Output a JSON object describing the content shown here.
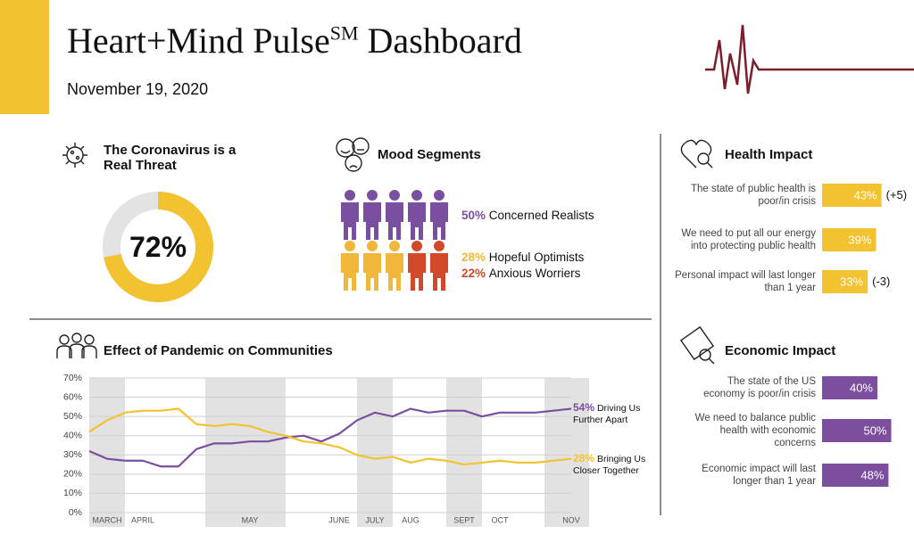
{
  "header": {
    "title": "Heart+Mind Pulse",
    "title_sup": "SM",
    "title_end": " Dashboard",
    "date": "November 19, 2020"
  },
  "threat": {
    "title": "The Coronavirus is a Real Threat",
    "value": 72,
    "value_label": "72%",
    "color": "#f2c230"
  },
  "mood": {
    "title": "Mood Segments",
    "segments": [
      {
        "name": "Concerned Realists",
        "value": 50,
        "value_label": "50%",
        "color": "#7b4fa0"
      },
      {
        "name": "Hopeful Optimists",
        "value": 28,
        "value_label": "28%",
        "color": "#f0b73a"
      },
      {
        "name": "Anxious Worriers",
        "value": 22,
        "value_label": "22%",
        "color": "#d04a2a"
      }
    ]
  },
  "health": {
    "title": "Health Impact",
    "color": "#f2c230",
    "items": [
      {
        "label": "The state of public health is poor/in crisis",
        "value": 43,
        "value_label": "43%",
        "change": "(+5)"
      },
      {
        "label": "We need to put all our energy into protecting public health",
        "value": 39,
        "value_label": "39%"
      },
      {
        "label": "Personal impact will last longer than 1 year",
        "value": 33,
        "value_label": "33%",
        "change": "(-3)"
      }
    ]
  },
  "economic": {
    "title": "Economic Impact",
    "color": "#7b4f9e",
    "items": [
      {
        "label": "The state of the US economy is poor/in crisis",
        "value": 40,
        "value_label": "40%"
      },
      {
        "label": "We need to balance public health with economic concerns",
        "value": 50,
        "value_label": "50%"
      },
      {
        "label": "Economic impact will last longer than 1 year",
        "value": 48,
        "value_label": "48%"
      }
    ]
  },
  "chart_data": {
    "type": "line",
    "title": "Effect of Pandemic on Communities",
    "categories": [
      null,
      "MARCH",
      null,
      "APRIL",
      null,
      null,
      null,
      null,
      null,
      "MAY",
      null,
      null,
      null,
      null,
      "JUNE",
      null,
      "JULY",
      null,
      "AUG",
      null,
      null,
      "SEPT",
      null,
      "OCT",
      null,
      null,
      null,
      "NOV"
    ],
    "ylim": [
      0,
      70
    ],
    "yticks": [
      {
        "value": 0,
        "label": "0%"
      },
      {
        "value": 10,
        "label": "10%"
      },
      {
        "value": 20,
        "label": "20%"
      },
      {
        "value": 30,
        "label": "30%"
      },
      {
        "value": 40,
        "label": "40%"
      },
      {
        "value": 50,
        "label": "50%"
      },
      {
        "value": 60,
        "label": "60%"
      },
      {
        "value": 70,
        "label": "70%"
      }
    ],
    "grid": true,
    "series": [
      {
        "name": "Driving Us Further Apart",
        "color": "#7b4fa0",
        "value_label": "54%",
        "values": [
          32,
          28,
          27,
          27,
          24,
          24,
          33,
          36,
          36,
          37,
          37,
          39,
          40,
          37,
          41,
          48,
          52,
          50,
          54,
          52,
          53,
          53,
          50,
          52,
          52,
          52,
          53,
          54
        ]
      },
      {
        "name": "Bringing Us Closer Together",
        "color": "#f2c230",
        "value_label": "28%",
        "values": [
          42,
          48,
          52,
          53,
          53,
          54,
          46,
          45,
          46,
          45,
          42,
          40,
          37,
          36,
          34,
          30,
          28,
          29,
          26,
          28,
          27,
          25,
          26,
          27,
          26,
          26,
          27,
          28
        ]
      }
    ]
  }
}
